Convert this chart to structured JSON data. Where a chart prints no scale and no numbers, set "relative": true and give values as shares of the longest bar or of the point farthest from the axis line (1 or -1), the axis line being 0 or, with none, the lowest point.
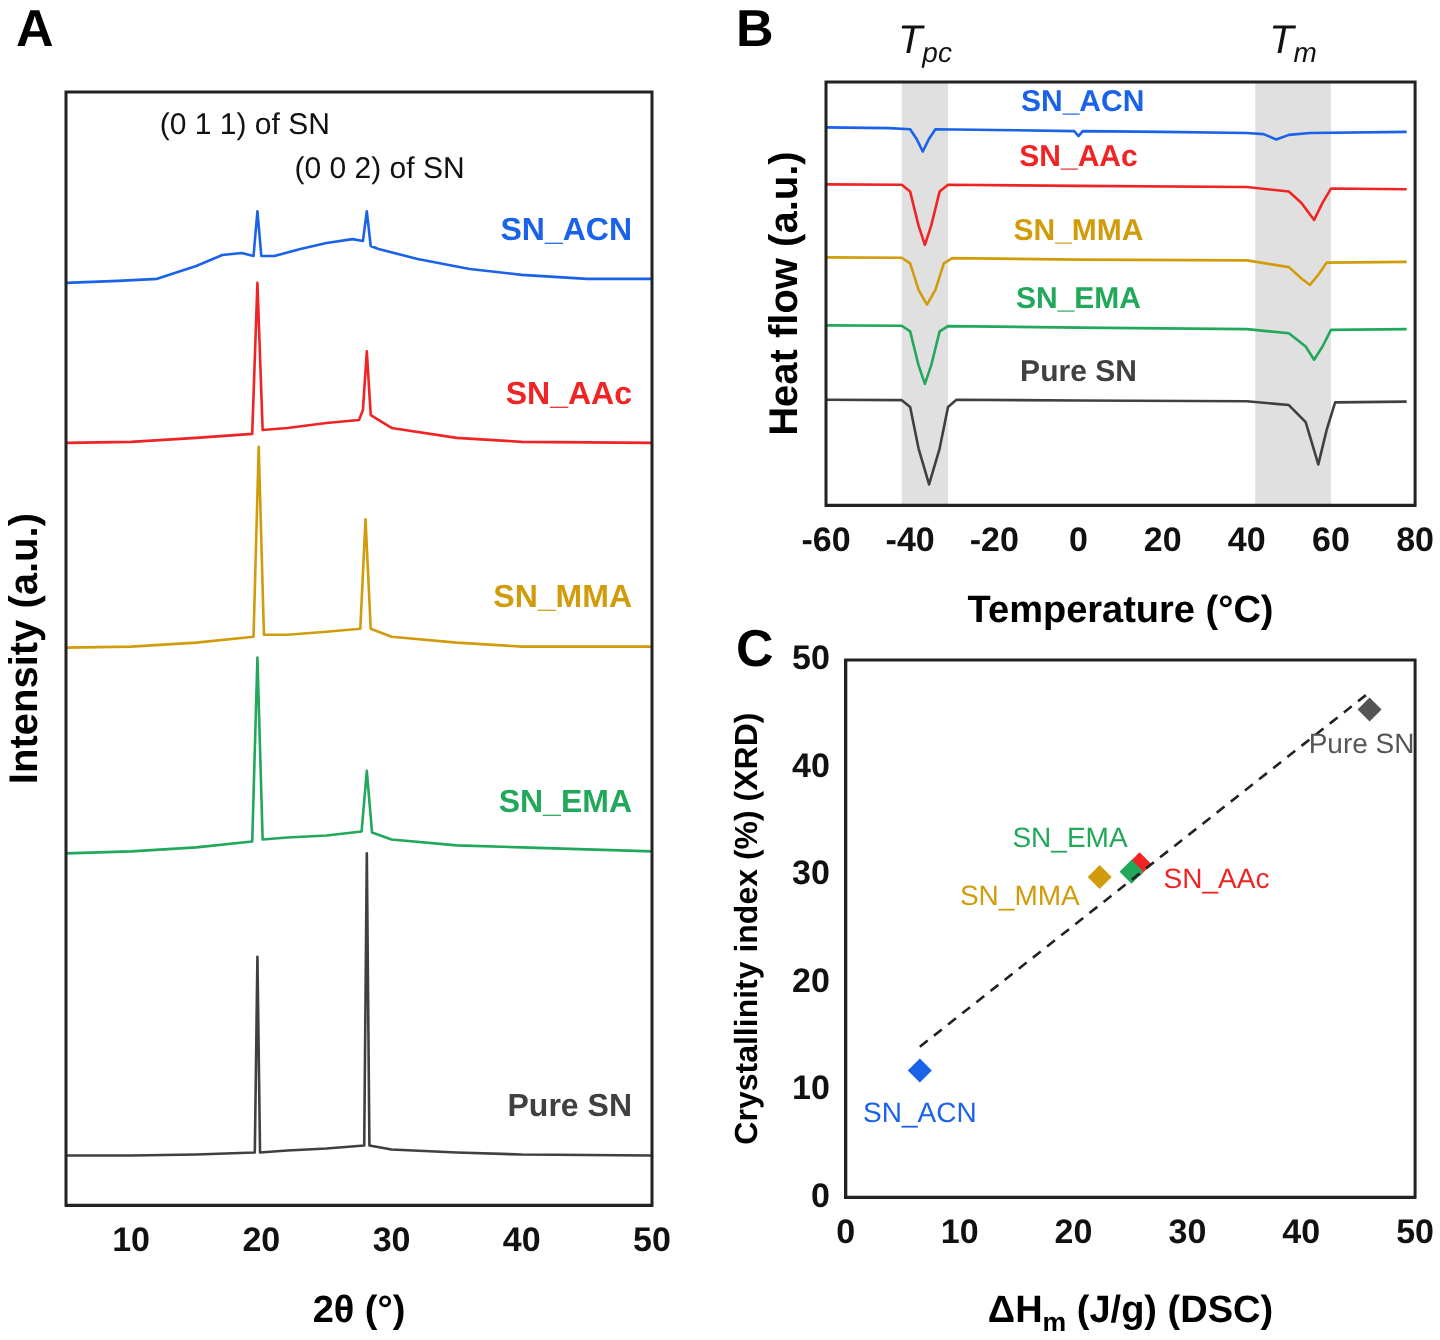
{
  "chart_data": [
    {
      "type": "line",
      "title": "A",
      "xlabel": "2θ (°)",
      "ylabel": "Intensity (a.u.)",
      "relative": true,
      "xlim": [
        5,
        50
      ],
      "xticks": [
        10,
        20,
        30,
        40,
        50
      ],
      "tick_labels": "x",
      "grid": false,
      "legend": false,
      "marker": "none",
      "line_style": "solid",
      "annotations": [
        "(0 1 1) of SN",
        "(0 0 2) of SN"
      ],
      "series": [
        {
          "name": "SN_ACN",
          "color": "#1a62e8",
          "x": [
            5,
            9,
            12,
            15,
            17,
            18.5,
            19.4,
            19.7,
            20.0,
            21,
            23,
            25,
            27,
            27.8,
            28.1,
            28.4,
            29,
            32,
            36,
            40,
            45,
            50
          ],
          "values": [
            0.928,
            0.93,
            0.932,
            0.945,
            0.956,
            0.958,
            0.955,
            1.0,
            0.955,
            0.955,
            0.962,
            0.968,
            0.972,
            0.97,
            1.0,
            0.965,
            0.962,
            0.952,
            0.942,
            0.936,
            0.932,
            0.932
          ]
        },
        {
          "name": "SN_AAc",
          "color": "#f02424",
          "x": [
            5,
            10,
            15,
            19.3,
            19.7,
            20.1,
            22,
            25,
            27.5,
            27.8,
            28.1,
            28.4,
            30,
            35,
            40,
            50
          ],
          "values": [
            0.767,
            0.768,
            0.772,
            0.776,
            0.928,
            0.78,
            0.782,
            0.787,
            0.79,
            0.8,
            0.859,
            0.795,
            0.782,
            0.772,
            0.768,
            0.767
          ]
        },
        {
          "name": "SN_MMA",
          "color": "#d19c0c",
          "x": [
            5,
            10,
            15,
            19.4,
            19.8,
            20.2,
            22,
            25,
            27.6,
            28.0,
            28.4,
            30,
            35,
            40,
            50
          ],
          "values": [
            0.561,
            0.562,
            0.566,
            0.572,
            0.763,
            0.574,
            0.574,
            0.577,
            0.58,
            0.69,
            0.58,
            0.572,
            0.566,
            0.562,
            0.562
          ]
        },
        {
          "name": "SN_EMA",
          "color": "#22a85a",
          "x": [
            5,
            10,
            15,
            19.3,
            19.7,
            20.1,
            22,
            25,
            27.7,
            28.1,
            28.5,
            30,
            35,
            40,
            50
          ],
          "values": [
            0.354,
            0.356,
            0.36,
            0.366,
            0.551,
            0.368,
            0.37,
            0.372,
            0.376,
            0.437,
            0.375,
            0.368,
            0.362,
            0.36,
            0.356
          ]
        },
        {
          "name": "Pure SN",
          "color": "#404040",
          "x": [
            5,
            10,
            15,
            19.5,
            19.7,
            19.9,
            22,
            25,
            27.9,
            28.1,
            28.3,
            30,
            35,
            40,
            50
          ],
          "values": [
            0.05,
            0.05,
            0.051,
            0.053,
            0.25,
            0.053,
            0.055,
            0.057,
            0.06,
            0.354,
            0.06,
            0.056,
            0.053,
            0.051,
            0.05
          ]
        }
      ]
    },
    {
      "type": "line",
      "title": "B",
      "xlabel": "Temperature (°C)",
      "ylabel": "Heat flow (a.u.)",
      "relative": true,
      "xlim": [
        -60,
        80
      ],
      "xticks": [
        -60,
        -40,
        -20,
        0,
        20,
        40,
        60,
        80
      ],
      "tick_labels": "x",
      "grid": false,
      "legend": false,
      "marker": "none",
      "line_style": "solid",
      "bands": [
        {
          "axis": "x",
          "from": -42,
          "to": -31,
          "label": "T$_{pc}$",
          "color": "#e0e0e0"
        },
        {
          "axis": "x",
          "from": 42,
          "to": 60,
          "label": "T$_{m}$",
          "color": "#e0e0e0"
        }
      ],
      "series": [
        {
          "name": "SN_ACN",
          "color": "#1a62e8",
          "x": [
            -60,
            -45,
            -40,
            -38.5,
            -37,
            -35.5,
            -34,
            -20,
            -1,
            0,
            1,
            20,
            40,
            44,
            47,
            50,
            55,
            78
          ],
          "values": [
            1.0,
            0.998,
            0.995,
            0.97,
            0.936,
            0.97,
            0.995,
            0.993,
            0.99,
            0.977,
            0.99,
            0.988,
            0.985,
            0.982,
            0.968,
            0.98,
            0.985,
            0.988
          ]
        },
        {
          "name": "SN_AAc",
          "color": "#f02424",
          "x": [
            -60,
            -42,
            -40,
            -38,
            -36.5,
            -35,
            -33,
            -31,
            0,
            40,
            50,
            53,
            56,
            58,
            60,
            78
          ],
          "values": [
            0.849,
            0.848,
            0.83,
            0.74,
            0.689,
            0.74,
            0.83,
            0.848,
            0.845,
            0.842,
            0.83,
            0.8,
            0.755,
            0.8,
            0.838,
            0.836
          ]
        },
        {
          "name": "SN_MMA",
          "color": "#d19c0c",
          "x": [
            -60,
            -42,
            -40,
            -38,
            -36,
            -34,
            -32,
            -30,
            0,
            40,
            50,
            53,
            55,
            57,
            59,
            78
          ],
          "values": [
            0.656,
            0.655,
            0.64,
            0.57,
            0.531,
            0.57,
            0.64,
            0.654,
            0.65,
            0.648,
            0.63,
            0.6,
            0.583,
            0.61,
            0.642,
            0.644
          ]
        },
        {
          "name": "SN_EMA",
          "color": "#22a85a",
          "x": [
            -60,
            -42,
            -40,
            -38,
            -36.5,
            -35,
            -33,
            -31,
            0,
            40,
            50,
            54,
            56,
            58,
            60,
            78
          ],
          "values": [
            0.476,
            0.475,
            0.46,
            0.37,
            0.321,
            0.37,
            0.46,
            0.474,
            0.47,
            0.466,
            0.455,
            0.42,
            0.385,
            0.42,
            0.464,
            0.466
          ]
        },
        {
          "name": "Pure SN",
          "color": "#404040",
          "x": [
            -60,
            -42,
            -40,
            -38,
            -35.5,
            -33,
            -31,
            -29,
            0,
            40,
            50,
            54,
            57,
            59,
            61,
            78
          ],
          "values": [
            0.279,
            0.278,
            0.26,
            0.15,
            0.055,
            0.15,
            0.26,
            0.279,
            0.277,
            0.275,
            0.265,
            0.22,
            0.108,
            0.2,
            0.272,
            0.274
          ]
        }
      ]
    },
    {
      "type": "scatter",
      "title": "C",
      "xlabel": "ΔH$_{m}$ (J/g) (DSC)",
      "ylabel": "Crystallinity index (%) (XRD)",
      "xlim": [
        0,
        50
      ],
      "ylim": [
        0,
        50
      ],
      "xticks": [
        0,
        10,
        20,
        30,
        40,
        50
      ],
      "yticks": [
        0,
        10,
        20,
        30,
        40,
        50
      ],
      "grid": false,
      "legend": false,
      "marker": "diamond",
      "series": [
        {
          "type": "line",
          "color": "#222222",
          "x": [
            6.5,
            46
          ],
          "values": [
            14,
            47
          ],
          "line_style": "dashed",
          "marker": "none"
        },
        {
          "name": "SN_ACN",
          "color": "#1a62e8",
          "x": [
            6.5
          ],
          "values": [
            11.8
          ]
        },
        {
          "name": "SN_MMA",
          "color": "#d19c0c",
          "x": [
            22.3
          ],
          "values": [
            29.8
          ]
        },
        {
          "name": "SN_EMA",
          "color": "#22a85a",
          "x": [
            25.1
          ],
          "values": [
            30.3
          ]
        },
        {
          "name": "SN_AAc",
          "color": "#f02424",
          "x": [
            25.8
          ],
          "values": [
            31
          ]
        },
        {
          "name": "Pure SN",
          "color": "#555555",
          "x": [
            46
          ],
          "values": [
            45.4
          ]
        }
      ]
    }
  ]
}
